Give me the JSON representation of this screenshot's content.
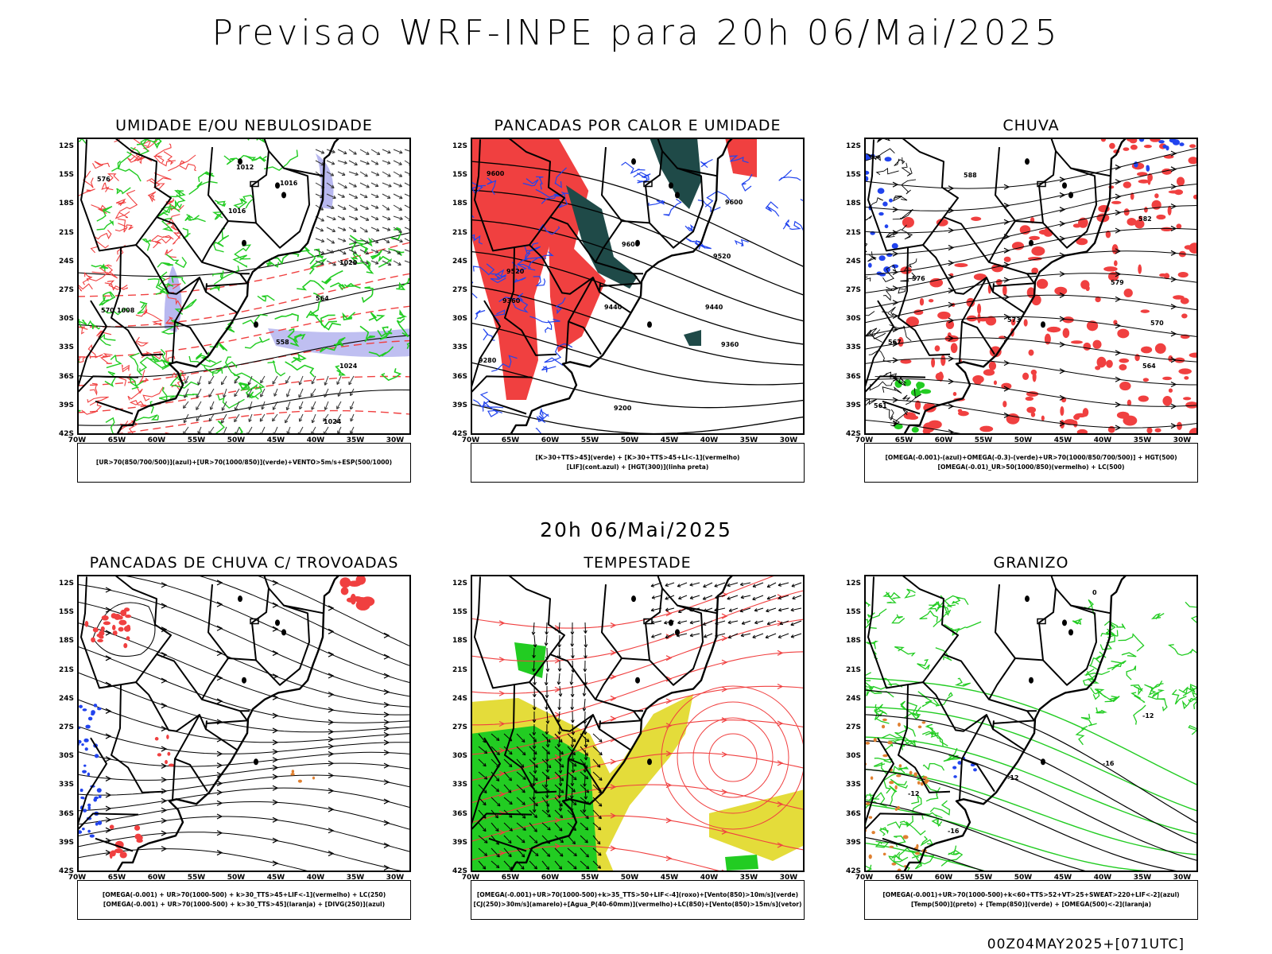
{
  "title": "Previsao WRF-INPE  para 20h 06/Mai/2025",
  "subtitle": "20h 06/Mai/2025",
  "footer": "00Z04MAY2025+[071UTC]",
  "axes": {
    "lat_labels": [
      "12S",
      "15S",
      "18S",
      "21S",
      "24S",
      "27S",
      "30S",
      "33S",
      "36S",
      "39S",
      "42S"
    ],
    "lon_labels": [
      "70W",
      "65W",
      "60W",
      "55W",
      "50W",
      "45W",
      "40W",
      "35W",
      "30W"
    ]
  },
  "colors": {
    "red": "#f04040",
    "green": "#22cc22",
    "blue": "#2244ee",
    "lavender": "#b8b8f0",
    "yellow": "#e4dc3a",
    "dark_teal": "#1f4a48",
    "orange": "#e08030",
    "black": "#000000"
  },
  "panels": [
    {
      "title": "UMIDADE E/OU NEBULOSIDADE",
      "legend": [
        "[UR>70(850/700/500)](azul)+[UR>70(1000/850)](verde)+VENTO>5m/s+ESP(500/1000)"
      ],
      "contour_labels": [
        "1012",
        "1016",
        "1016",
        "1020",
        "1008",
        "1024",
        "1024",
        "576",
        "570",
        "564",
        "558"
      ]
    },
    {
      "title": "PANCADAS POR CALOR E UMIDADE",
      "legend": [
        "[K>30+TTS>45](verde) + [K>30+TTS>45+LI<-1](vermelho)",
        "[LIF](cont.azul) + [HGT(300)](linha preta)"
      ],
      "contour_labels": [
        "9600",
        "9600",
        "9600",
        "9520",
        "9520",
        "9440",
        "9440",
        "9360",
        "9360",
        "9280",
        "9200"
      ]
    },
    {
      "title": "CHUVA",
      "legend": [
        "[OMEGA(-0.001)-(azul)+OMEGA(-0.3)-(verde)+UR>70(1000/850/700/500)] + HGT(500)",
        "[OMEGA(-0.01)_UR>50(1000/850)(vermelho) + LC(500)"
      ],
      "contour_labels": [
        "588",
        "582",
        "576",
        "579",
        "573",
        "570",
        "567",
        "564",
        "561"
      ]
    },
    {
      "title": "PANCADAS DE CHUVA C/ TROVOADAS",
      "legend": [
        "[OMEGA(-0.001) + UR>70(1000-500) + k>30_TTS>45+LIF<-1](vermelho) + LC(250)",
        "[OMEGA(-0.001) + UR>70(1000-500) + k>30_TTS>45](laranja) + [DIVG(250)](azul)"
      ],
      "contour_labels": []
    },
    {
      "title": "TEMPESTADE",
      "legend": [
        "[OMEGA(-0.001)+UR>70(1000-500)+k>35_TTS>50+LIF<-4](roxo)+[Vento(850)>10m/s](verde)",
        "[CJ(250)>30m/s](amarelo)+[Agua_P(40-60mm)](vermelho)+LC(850)+[Vento(850)>15m/s](vetor)"
      ],
      "contour_labels": []
    },
    {
      "title": "GRANIZO",
      "legend": [
        "[OMEGA(-0.001)+UR>70(1000-500)+k<60+TTS>52+VT>25+SWEAT>220+LIF<-2](azul)",
        "[Temp(500)](preto) + [Temp(850)](verde) + [OMEGA(500)<-2](laranja)"
      ],
      "contour_labels": [
        "0",
        "-12",
        "-12",
        "-12",
        "-16",
        "-16"
      ]
    }
  ]
}
